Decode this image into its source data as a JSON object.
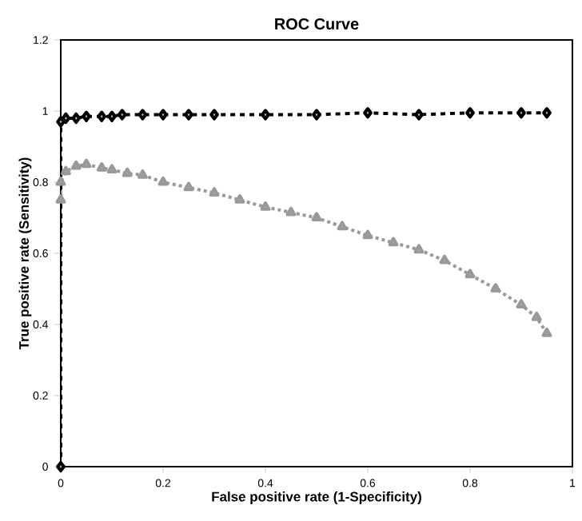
{
  "chart_data": {
    "type": "line",
    "title": "ROC Curve",
    "xlabel": "False positive rate (1-Specificity)",
    "ylabel": "True positive rate (Sensitivity)",
    "xlim": [
      0,
      1
    ],
    "ylim": [
      0,
      1.2
    ],
    "xticks": [
      0,
      0.2,
      0.4,
      0.6,
      0.8,
      1
    ],
    "yticks": [
      0,
      0.2,
      0.4,
      0.6,
      0.8,
      1,
      1.2
    ],
    "grid": false,
    "series": [
      {
        "color": "#999999",
        "marker": "triangle",
        "line_style": "dotted",
        "x": [
          0,
          0,
          0.01,
          0.03,
          0.05,
          0.08,
          0.1,
          0.13,
          0.16,
          0.2,
          0.25,
          0.3,
          0.35,
          0.4,
          0.45,
          0.5,
          0.55,
          0.6,
          0.65,
          0.7,
          0.75,
          0.8,
          0.85,
          0.9,
          0.93,
          0.95
        ],
        "values": [
          0.75,
          0.8,
          0.83,
          0.845,
          0.85,
          0.84,
          0.835,
          0.825,
          0.82,
          0.8,
          0.785,
          0.77,
          0.75,
          0.73,
          0.715,
          0.7,
          0.675,
          0.65,
          0.63,
          0.61,
          0.58,
          0.54,
          0.5,
          0.455,
          0.42,
          0.375
        ]
      },
      {
        "color": "#000000",
        "marker": "diamond",
        "line_style": "dashed",
        "x": [
          0,
          0,
          0.01,
          0.03,
          0.05,
          0.08,
          0.1,
          0.12,
          0.16,
          0.2,
          0.25,
          0.3,
          0.4,
          0.5,
          0.6,
          0.7,
          0.8,
          0.9,
          0.95
        ],
        "values": [
          0,
          0.97,
          0.98,
          0.98,
          0.985,
          0.985,
          0.985,
          0.99,
          0.99,
          0.99,
          0.99,
          0.99,
          0.99,
          0.99,
          0.995,
          0.99,
          0.995,
          0.995,
          0.995
        ]
      }
    ]
  }
}
